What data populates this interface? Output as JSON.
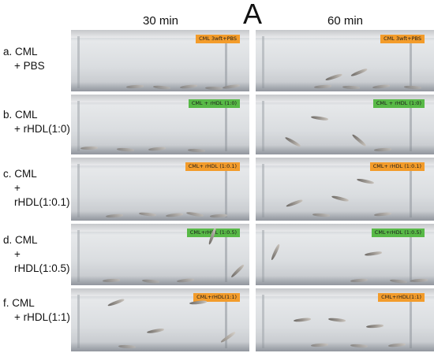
{
  "panel_letter": "A",
  "columns": [
    "30 min",
    "60 min"
  ],
  "colors": {
    "orange_tag": "#f39c2b",
    "green_tag": "#58b947"
  },
  "rows": [
    {
      "label_line1": "a.  CML",
      "label_line2": "+ PBS",
      "tag_color": "#f39c2b",
      "tag_text_30": "CML 3wft+PBS",
      "tag_text_60": "CML 3wft+PBS"
    },
    {
      "label_line1": "b. CML",
      "label_line2": "+ rHDL(1:0)",
      "tag_color": "#58b947",
      "tag_text_30": "CML + rHDL (1:0)",
      "tag_text_60": "CML + rHDL (1:0)"
    },
    {
      "label_line1": "c. CML",
      "label_line2": "+ rHDL(1:0.1)",
      "tag_color": "#f39c2b",
      "tag_text_30": "CML+ rHDL (1:0.1)",
      "tag_text_60": "CML+ rHDL (1:0.1)"
    },
    {
      "label_line1": "d. CML",
      "label_line2": "+ rHDL(1:0.5)",
      "tag_color": "#58b947",
      "tag_text_30": "CML+rHDL (1:0.5)",
      "tag_text_60": "CML+rHDL (1:0.5)"
    },
    {
      "label_line1": "f. CML",
      "label_line2": "+ rHDL(1:1)",
      "tag_color": "#f39c2b",
      "tag_text_30": "CML+rHDL(1:1)",
      "tag_text_60": "CML+rHDL(1:1)"
    }
  ]
}
